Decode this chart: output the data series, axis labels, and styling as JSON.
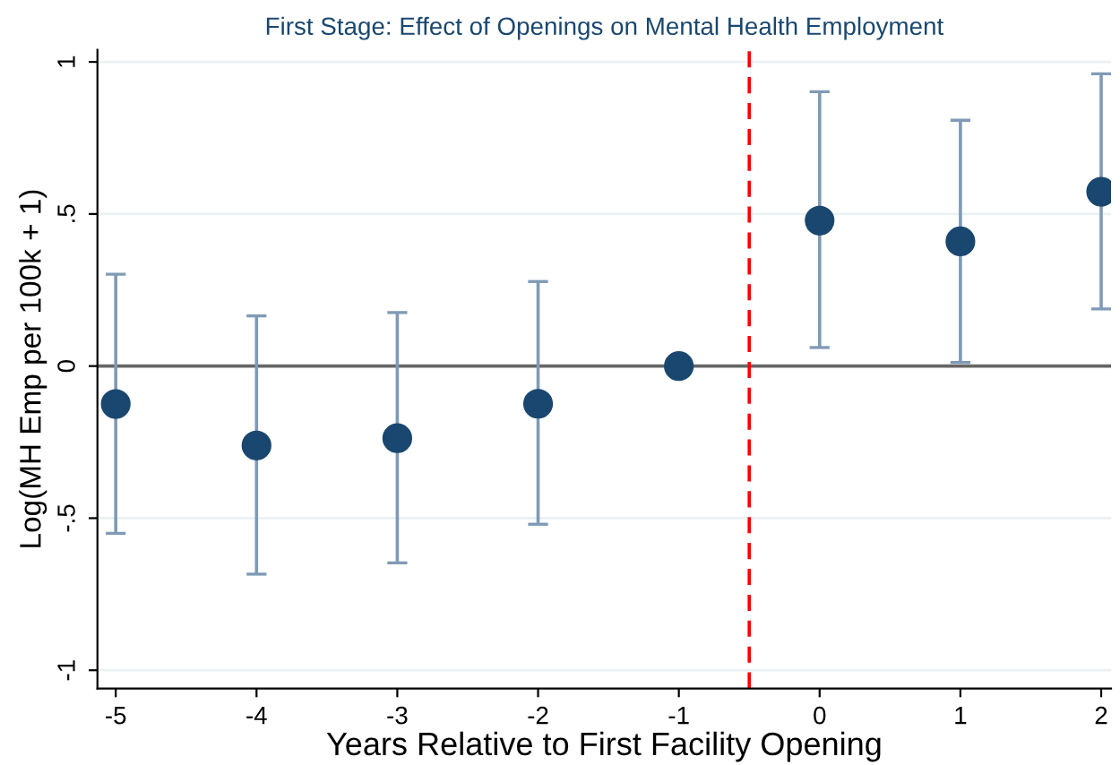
{
  "chart_data": {
    "type": "scatter",
    "title": "First Stage: Effect of Openings on Mental Health Employment",
    "xlabel": "Years Relative to First Facility Opening",
    "ylabel": "Log(MH Emp per 100k + 1)",
    "x": [
      -5,
      -4,
      -3,
      -2,
      -1,
      0,
      1,
      2
    ],
    "series": [
      {
        "color": "#1a476f",
        "values": [
          -0.125,
          -0.261,
          -0.237,
          -0.124,
          0,
          0.478,
          0.41,
          0.573
        ],
        "errors": [
          [
            -0.55,
            0.302
          ],
          [
            -0.684,
            0.165
          ],
          [
            -0.647,
            0.176
          ],
          [
            -0.52,
            0.278
          ],
          null,
          [
            0.061,
            0.902
          ],
          [
            0.012,
            0.808
          ],
          [
            0.188,
            0.961
          ]
        ]
      }
    ],
    "marker": "circle",
    "grid": "y",
    "legend": false,
    "xlim": [
      -5.13,
      2.07
    ],
    "ylim": [
      -1.06,
      1.04
    ],
    "xticks": [
      -5,
      -4,
      -3,
      -2,
      -1,
      0,
      1,
      2
    ],
    "yticks": [
      {
        "value": -1,
        "label": "-1"
      },
      {
        "value": -0.5,
        "label": "-.5"
      },
      0,
      {
        "value": 0.5,
        "label": ".5"
      },
      1
    ],
    "ref_lines": [
      {
        "axis": "y",
        "value": 0,
        "color": "#666666",
        "line_style": "solid"
      },
      {
        "axis": "x",
        "value": -0.5,
        "color": "#ff0000",
        "line_style": "dashed"
      }
    ]
  }
}
